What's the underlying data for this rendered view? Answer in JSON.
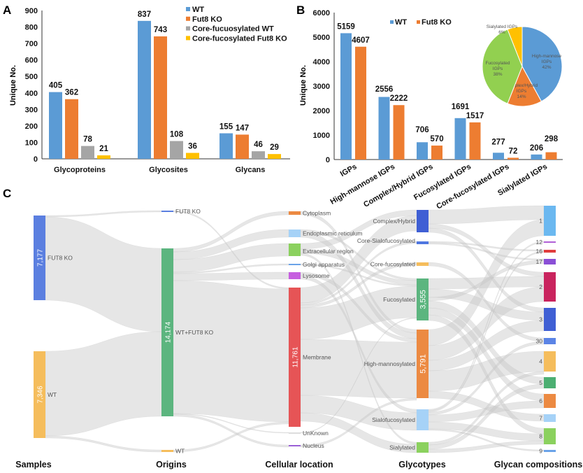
{
  "panel_labels": {
    "a": "A",
    "b": "B",
    "c": "C"
  },
  "colors": {
    "wt": "#5b9bd5",
    "ko": "#ed7d31",
    "core_wt": "#a5a5a5",
    "core_ko": "#ffc000",
    "pie_green": "#92d050",
    "link": "#d9d9d9"
  },
  "chart_data": [
    {
      "panel": "A",
      "type": "bar",
      "ylabel": "Unique No.",
      "ylim": [
        0,
        900
      ],
      "yticks": [
        0,
        100,
        200,
        300,
        400,
        500,
        600,
        700,
        800,
        900
      ],
      "categories": [
        "Glycoproteins",
        "Glycosites",
        "Glycans"
      ],
      "series": [
        {
          "name": "WT",
          "values": [
            405,
            837,
            155
          ]
        },
        {
          "name": "Fut8 KO",
          "values": [
            362,
            743,
            147
          ]
        },
        {
          "name": "Core-fucuosylated WT",
          "values": [
            78,
            108,
            46
          ]
        },
        {
          "name": "Core-fucosylated Fut8 KO",
          "values": [
            21,
            36,
            29
          ]
        }
      ],
      "legend": "top-right",
      "grid": false
    },
    {
      "panel": "B",
      "type": "bar",
      "ylabel": "Unique No.",
      "ylim": [
        0,
        6000
      ],
      "yticks": [
        0,
        1000,
        2000,
        3000,
        4000,
        5000,
        6000
      ],
      "categories": [
        "IGPs",
        "High-mannose IGPs",
        "Complex/Hybrid IGPs",
        "Fucosylated IGPs",
        "Core-fucosylated IGPs",
        "Sialylated IGPs"
      ],
      "series": [
        {
          "name": "WT",
          "values": [
            5159,
            2556,
            706,
            1691,
            277,
            206
          ]
        },
        {
          "name": "Fut8 KO",
          "values": [
            4607,
            2222,
            570,
            1517,
            72,
            298
          ]
        }
      ],
      "legend": "top",
      "grid": false
    },
    {
      "panel": "B-inset",
      "type": "pie",
      "slices": [
        {
          "label": "High-mannose IGPs",
          "value": 42,
          "text": "42%",
          "color": "#5b9bd5"
        },
        {
          "label": "Complex/Hybrid IGPs",
          "value": 14,
          "text": "14%",
          "color": "#ed7d31"
        },
        {
          "label": "Fucosylated IGPs",
          "value": 38,
          "text": "38%",
          "color": "#92d050"
        },
        {
          "label": "Sialylated IGPs",
          "value": 6,
          "text": "6%",
          "color": "#ffc000"
        }
      ]
    },
    {
      "panel": "C",
      "type": "sankey",
      "columns": [
        "Samples",
        "Origins",
        "Cellular location",
        "Glycotypes",
        "Glycan compositions"
      ],
      "nodes": [
        {
          "id": "s_ko",
          "label": "FUT8 KO",
          "value": "7,177",
          "color": "#5b7fe0"
        },
        {
          "id": "s_wt",
          "label": "WT",
          "value": "7,346",
          "color": "#f5bd5c"
        },
        {
          "id": "o_ko",
          "label": "FUT8 KO",
          "color": "#5b7fe0"
        },
        {
          "id": "o_both",
          "label": "WT+FUT8 KO",
          "value": "14,174",
          "color": "#5cb57f"
        },
        {
          "id": "o_wt",
          "label": "WT",
          "color": "#f5bd5c"
        },
        {
          "id": "c_cyto",
          "label": "Cytoplasm",
          "color": "#ec8a42"
        },
        {
          "id": "c_er",
          "label": "Endoplasmic reticulum",
          "color": "#a6d2f7"
        },
        {
          "id": "c_ext",
          "label": "Extracellular region",
          "color": "#8bd15e"
        },
        {
          "id": "c_golgi",
          "label": "Golgi apparatus",
          "color": "#6aa3e8"
        },
        {
          "id": "c_lyso",
          "label": "Lysosome",
          "color": "#c65fe0"
        },
        {
          "id": "c_mem",
          "label": "Membrane",
          "value": "11,761",
          "color": "#e65456"
        },
        {
          "id": "c_unk",
          "label": "UnKnown",
          "color": "#dddddd"
        },
        {
          "id": "c_nuc",
          "label": "Nucleus",
          "color": "#9a5fd6"
        },
        {
          "id": "g_ch",
          "label": "Complex/Hybrid",
          "color": "#3f5fd4"
        },
        {
          "id": "g_csf",
          "label": "Core-Sialofucosylated",
          "color": "#4f77e0"
        },
        {
          "id": "g_cf",
          "label": "Core-fucosylated",
          "color": "#f5bd5c"
        },
        {
          "id": "g_fuc",
          "label": "Fucosylated",
          "value": "3,555",
          "color": "#5cb57f"
        },
        {
          "id": "g_hm",
          "label": "High-mannosylated",
          "value": "5,791",
          "color": "#ec8a42"
        },
        {
          "id": "g_sf",
          "label": "Sialofucosylated",
          "color": "#a6d2f7"
        },
        {
          "id": "g_sia",
          "label": "Sialylated",
          "color": "#8bd15e"
        },
        {
          "id": "k1",
          "label": "1",
          "color": "#6bb8f0"
        },
        {
          "id": "k12",
          "label": "12",
          "color": "#b05fd6"
        },
        {
          "id": "k16",
          "label": "16",
          "color": "#e03c3c"
        },
        {
          "id": "k17",
          "label": "17",
          "color": "#8a4fd6"
        },
        {
          "id": "k2",
          "label": "2",
          "color": "#c9245e"
        },
        {
          "id": "k3",
          "label": "3",
          "color": "#3f5fd4"
        },
        {
          "id": "k30",
          "label": "30",
          "color": "#5b84e6"
        },
        {
          "id": "k4",
          "label": "4",
          "color": "#f5bd5c"
        },
        {
          "id": "k5",
          "label": "5",
          "color": "#4caf72"
        },
        {
          "id": "k6",
          "label": "6",
          "color": "#ec8a42"
        },
        {
          "id": "k7",
          "label": "7",
          "color": "#a6d2f7"
        },
        {
          "id": "k8",
          "label": "8",
          "color": "#8bd15e"
        },
        {
          "id": "k9",
          "label": "9",
          "color": "#6aa3e8"
        }
      ]
    }
  ]
}
